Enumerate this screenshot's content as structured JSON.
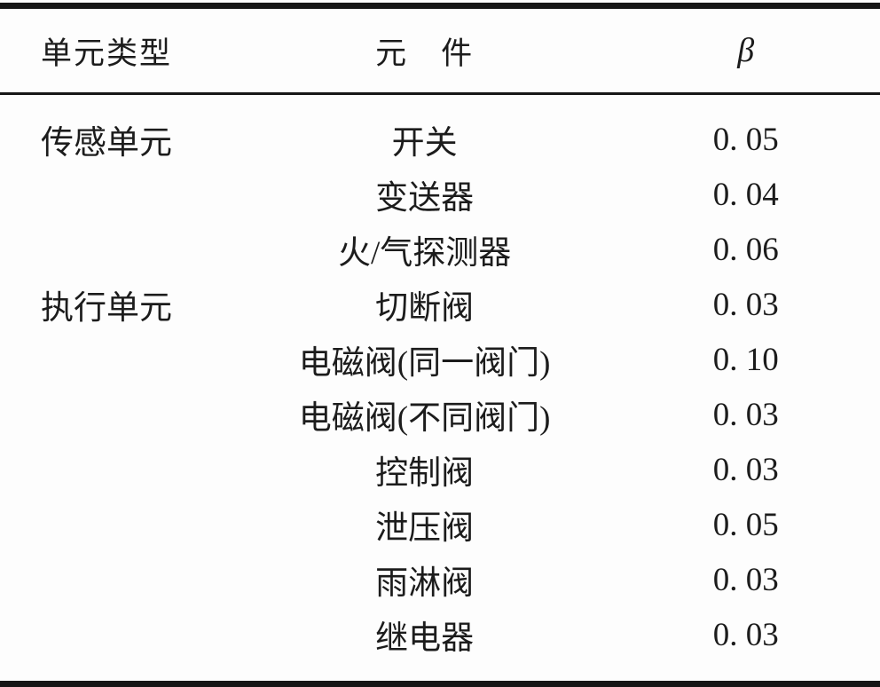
{
  "table": {
    "columns": [
      {
        "label": "单元类型"
      },
      {
        "label": "元　件"
      },
      {
        "label": "β"
      }
    ],
    "rows": [
      {
        "unit_type": "传感单元",
        "component": "开关",
        "beta": "0. 05"
      },
      {
        "unit_type": "",
        "component": "变送器",
        "beta": "0. 04"
      },
      {
        "unit_type": "",
        "component": "火/气探测器",
        "beta": "0. 06"
      },
      {
        "unit_type": "执行单元",
        "component": "切断阀",
        "beta": "0. 03"
      },
      {
        "unit_type": "",
        "component": "电磁阀(同一阀门)",
        "beta": "0. 10"
      },
      {
        "unit_type": "",
        "component": "电磁阀(不同阀门)",
        "beta": "0. 03"
      },
      {
        "unit_type": "",
        "component": "控制阀",
        "beta": "0. 03"
      },
      {
        "unit_type": "",
        "component": "泄压阀",
        "beta": "0. 05"
      },
      {
        "unit_type": "",
        "component": "雨淋阀",
        "beta": "0. 03"
      },
      {
        "unit_type": "",
        "component": "继电器",
        "beta": "0. 03"
      }
    ]
  }
}
